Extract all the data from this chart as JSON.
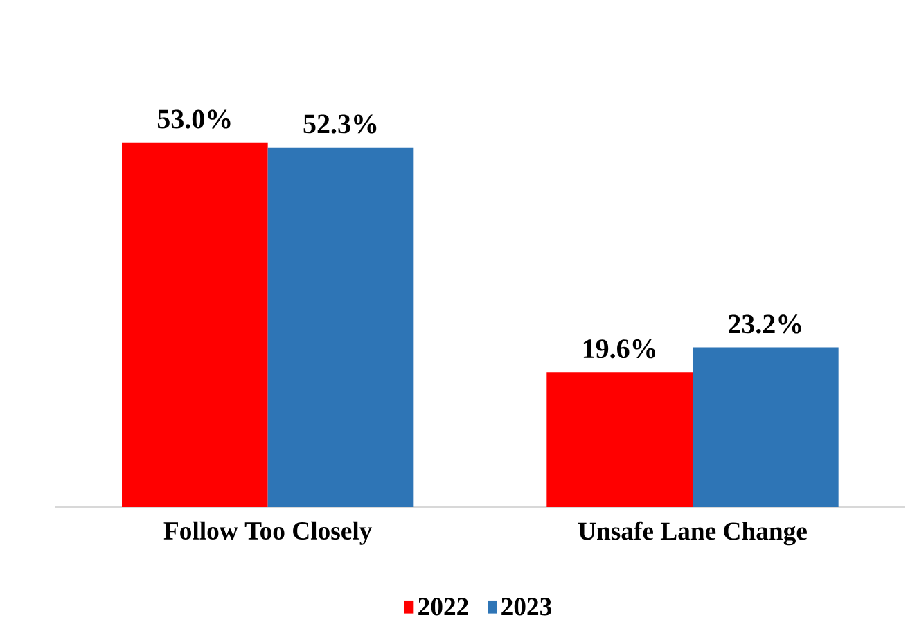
{
  "chart_data": {
    "type": "bar",
    "categories": [
      "Follow Too Closely",
      "Unsafe Lane Change"
    ],
    "series": [
      {
        "name": "2022",
        "color": "#ff0000",
        "values": [
          53.0,
          19.6
        ],
        "value_labels": [
          "53.0%",
          "19.6%"
        ]
      },
      {
        "name": "2023",
        "color": "#2e75b6",
        "values": [
          52.3,
          23.2
        ],
        "value_labels": [
          "52.3%",
          "23.2%"
        ]
      }
    ],
    "legend": "bottom"
  }
}
